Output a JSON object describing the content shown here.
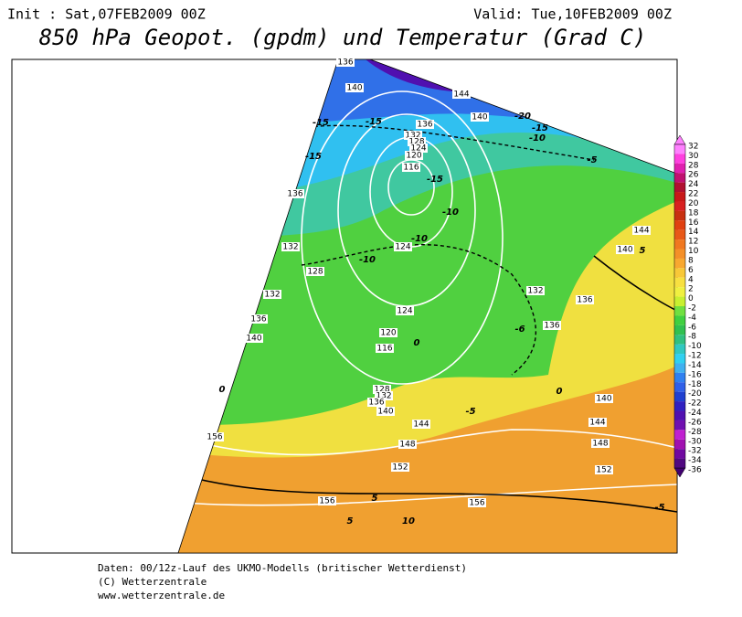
{
  "header": {
    "init": "Init : Sat,07FEB2009 00Z",
    "valid": "Valid: Tue,10FEB2009 00Z",
    "title": "850 hPa Geopot. (gpdm) und Temperatur (Grad C)"
  },
  "legend": {
    "labels": [
      32,
      30,
      28,
      26,
      24,
      22,
      20,
      18,
      16,
      14,
      12,
      10,
      8,
      6,
      4,
      2,
      0,
      -2,
      -4,
      -6,
      -8,
      -10,
      -12,
      -14,
      -16,
      -18,
      -20,
      -22,
      -24,
      -26,
      -28,
      -30,
      -32,
      -34,
      -36
    ],
    "colors": [
      "#ff80ff",
      "#ff40e0",
      "#e020b0",
      "#c01070",
      "#b01030",
      "#c81818",
      "#d82020",
      "#c83010",
      "#e04010",
      "#e85818",
      "#f07820",
      "#f49028",
      "#f8a830",
      "#f8c838",
      "#f8e040",
      "#f0f040",
      "#c8f030",
      "#70e040",
      "#40d040",
      "#30c050",
      "#30c080",
      "#30c8c0",
      "#30d0f0",
      "#40b0f0",
      "#3080f0",
      "#3060e8",
      "#2040d0",
      "#3020c0",
      "#5010b0",
      "#7010b0",
      "#c020d0",
      "#a010b0",
      "#7008a0",
      "#500880",
      "#400070"
    ]
  },
  "map_labels": {
    "geopotential": [
      136,
      140,
      144,
      140,
      136,
      132,
      128,
      124,
      120,
      116,
      136,
      132,
      128,
      124,
      132,
      136,
      140,
      124,
      120,
      116,
      128,
      132,
      136,
      140,
      144,
      148,
      152,
      156,
      156,
      152,
      148,
      144,
      140,
      136,
      136,
      132,
      144,
      140,
      156
    ],
    "temperature": [
      -15,
      -15,
      -20,
      -15,
      -10,
      -5,
      -15,
      -15,
      -10,
      -10,
      -10,
      -6,
      0,
      0,
      0,
      5,
      -5,
      5,
      -5,
      10,
      5
    ]
  },
  "footer": {
    "lines": [
      "Daten: 00/12z-Lauf des UKMO-Modells (britischer Wetterdienst)",
      "(C) Wetterzentrale",
      "www.wetterzentrale.de"
    ]
  }
}
